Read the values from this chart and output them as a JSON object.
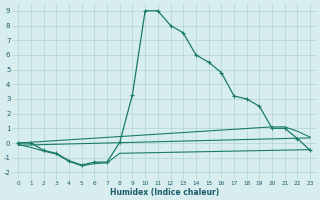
{
  "xlabel": "Humidex (Indice chaleur)",
  "bg_color": "#d8eeee",
  "grid_color": "#b8d8d8",
  "line_color": "#1a7a6a",
  "xlim": [
    -0.5,
    23.5
  ],
  "ylim": [
    -2.5,
    9.5
  ],
  "xticks": [
    0,
    1,
    2,
    3,
    4,
    5,
    6,
    7,
    8,
    9,
    10,
    11,
    12,
    13,
    14,
    15,
    16,
    17,
    18,
    19,
    20,
    21,
    22,
    23
  ],
  "yticks": [
    -2,
    -1,
    0,
    1,
    2,
    3,
    4,
    5,
    6,
    7,
    8,
    9
  ],
  "line1_x": [
    0,
    1,
    2,
    3,
    4,
    5,
    6,
    7,
    8,
    9,
    10,
    11,
    12,
    13,
    14,
    15,
    16,
    17,
    18,
    19,
    20,
    21,
    22,
    23
  ],
  "line1_y": [
    0.0,
    0.0,
    -0.5,
    -0.7,
    -1.2,
    -1.5,
    -1.3,
    -1.3,
    0.05,
    3.3,
    9.0,
    9.0,
    8.0,
    7.5,
    6.0,
    5.5,
    4.8,
    3.2,
    3.0,
    2.5,
    1.0,
    1.0,
    0.3,
    -0.5
  ],
  "line2_x": [
    0,
    20,
    21,
    22,
    23
  ],
  "line2_y": [
    0.0,
    1.1,
    1.1,
    0.8,
    0.4
  ],
  "line3_x": [
    0,
    23
  ],
  "line3_y": [
    -0.15,
    0.35
  ],
  "line4_x": [
    0,
    1,
    2,
    3,
    4,
    5,
    6,
    7,
    8,
    23
  ],
  "line4_y": [
    -0.1,
    -0.3,
    -0.55,
    -0.75,
    -1.25,
    -1.55,
    -1.4,
    -1.35,
    -0.7,
    -0.45
  ]
}
